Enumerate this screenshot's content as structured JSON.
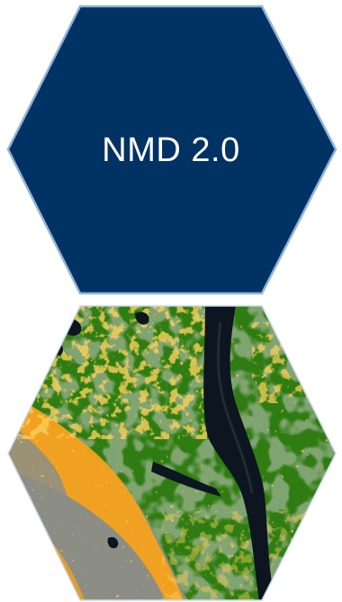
{
  "title": {
    "text": "NMD 2.0"
  },
  "colors": {
    "hex_fill": "#003263",
    "hex_border": "#8fb3d6",
    "forest_green": "#2f7d12",
    "open_orange": "#f7a21b",
    "water_dark": "#0d1620",
    "bare_grey": "#8c8e86"
  },
  "map": {
    "legend_icons": [
      "forest-area",
      "open-land-area",
      "water-area",
      "bare-land-area"
    ]
  }
}
